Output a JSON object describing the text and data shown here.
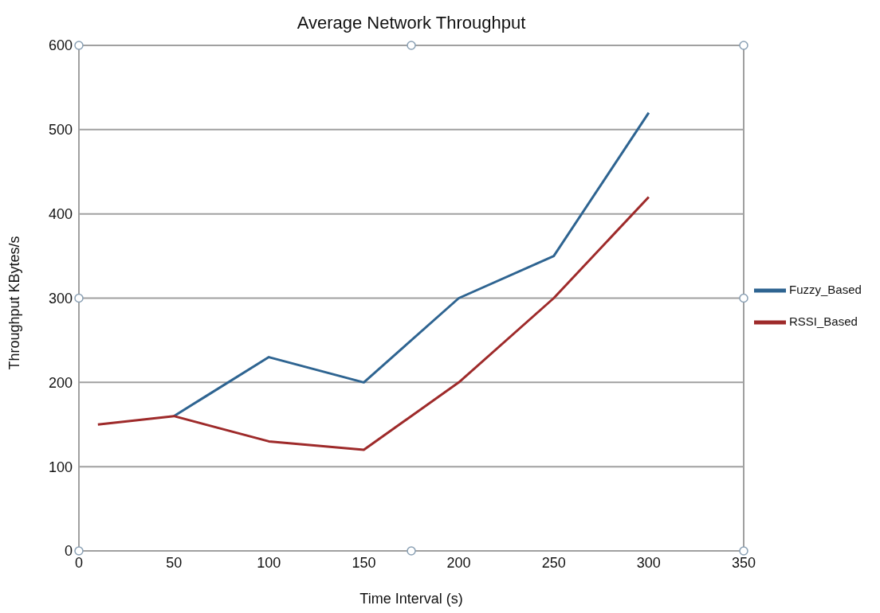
{
  "chart_data": {
    "type": "line",
    "title": "Average Network Throughput",
    "xlabel": "Time Interval (s)",
    "ylabel": "Throughput KBytes/s",
    "x": [
      10,
      50,
      100,
      150,
      200,
      250,
      300
    ],
    "series": [
      {
        "name": "Fuzzy_Based",
        "color": "#2e6491",
        "values": [
          null,
          160,
          230,
          200,
          300,
          350,
          520
        ]
      },
      {
        "name": "RSSI_Based",
        "color": "#9e2a2a",
        "values": [
          150,
          160,
          130,
          120,
          200,
          300,
          420
        ]
      }
    ],
    "xlim": [
      0,
      350
    ],
    "xticks": [
      0,
      50,
      100,
      150,
      200,
      250,
      300,
      350
    ],
    "ylim": [
      0,
      600
    ],
    "yticks": [
      0,
      100,
      200,
      300,
      400,
      500,
      600
    ],
    "grid": "y",
    "legend": "right",
    "marker": "none",
    "line_style": "solid"
  }
}
